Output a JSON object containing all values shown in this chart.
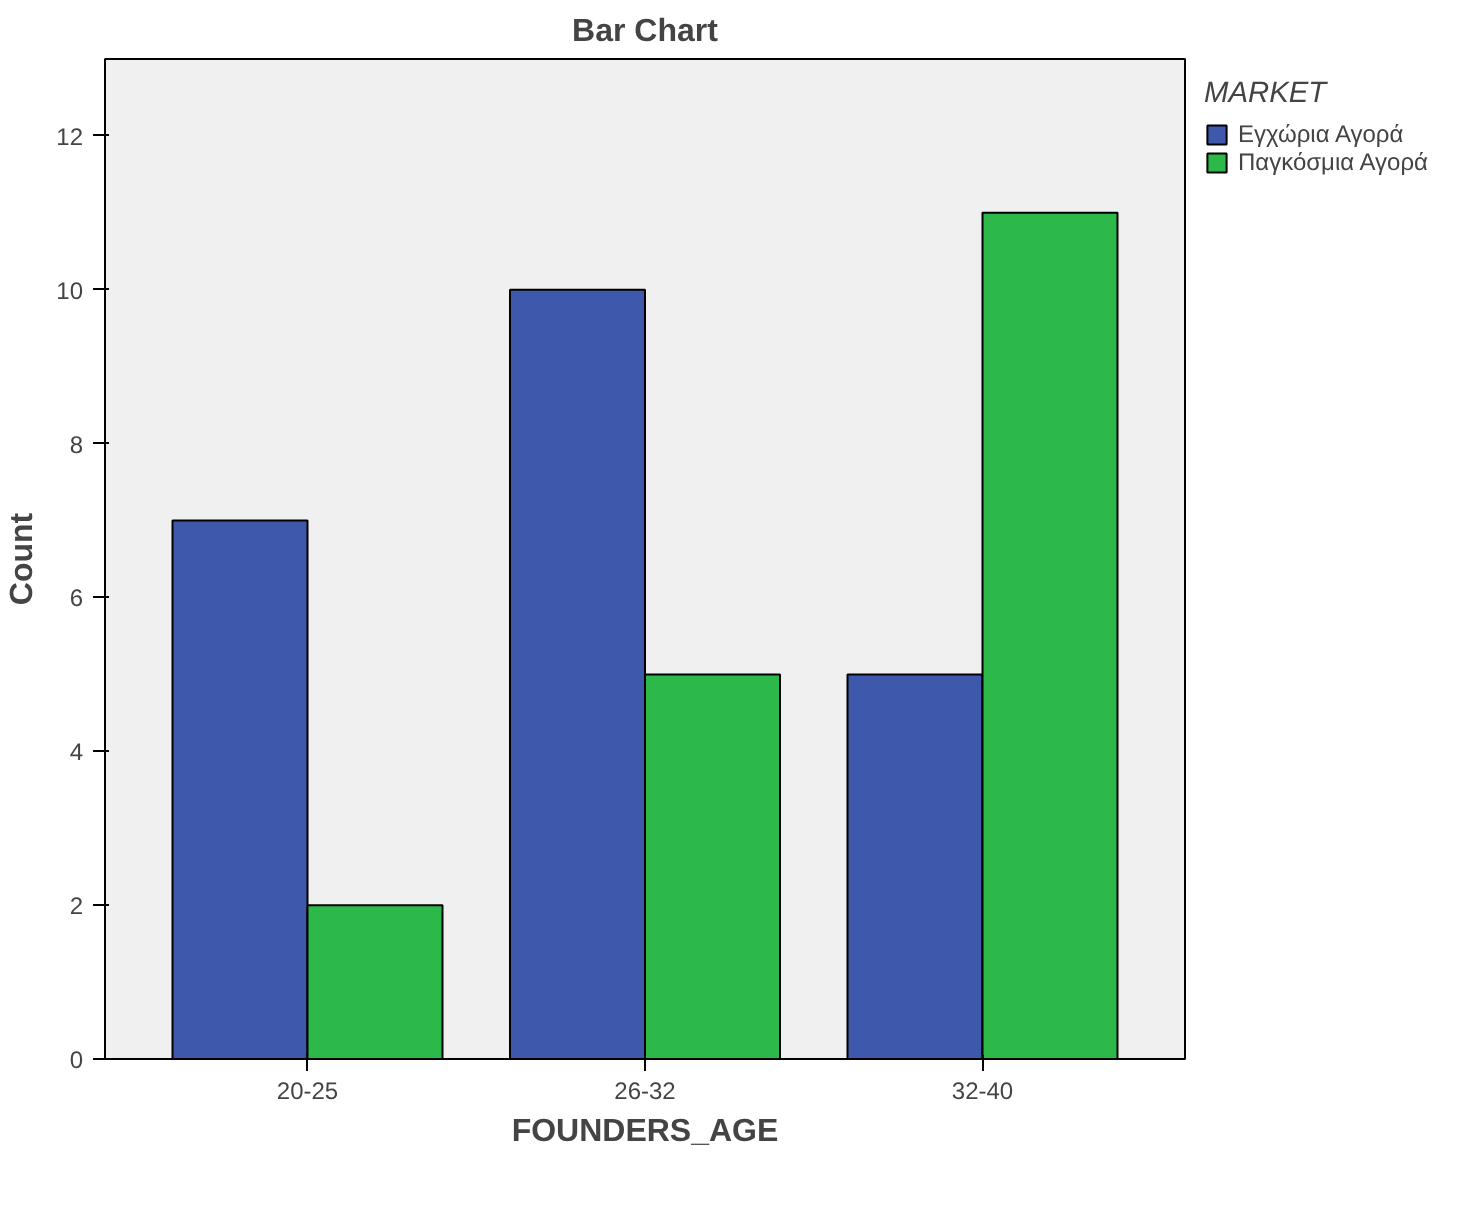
{
  "chart_data": {
    "type": "bar",
    "title": "Bar Chart",
    "xlabel": "FOUNDERS_AGE",
    "ylabel": "Count",
    "legend_title": "MARKET",
    "categories": [
      "20-25",
      "26-32",
      "32-40"
    ],
    "series": [
      {
        "name": "Εγχώρια Αγορά",
        "color": "#3e58ac",
        "values": [
          7,
          10,
          5
        ]
      },
      {
        "name": "Παγκόσμια Αγορά",
        "color": "#2db84a",
        "values": [
          2,
          5,
          11
        ]
      }
    ],
    "ylim": [
      0,
      13
    ],
    "yticks": [
      0,
      2,
      4,
      6,
      8,
      10,
      12
    ],
    "grid": false,
    "legend": "right"
  }
}
